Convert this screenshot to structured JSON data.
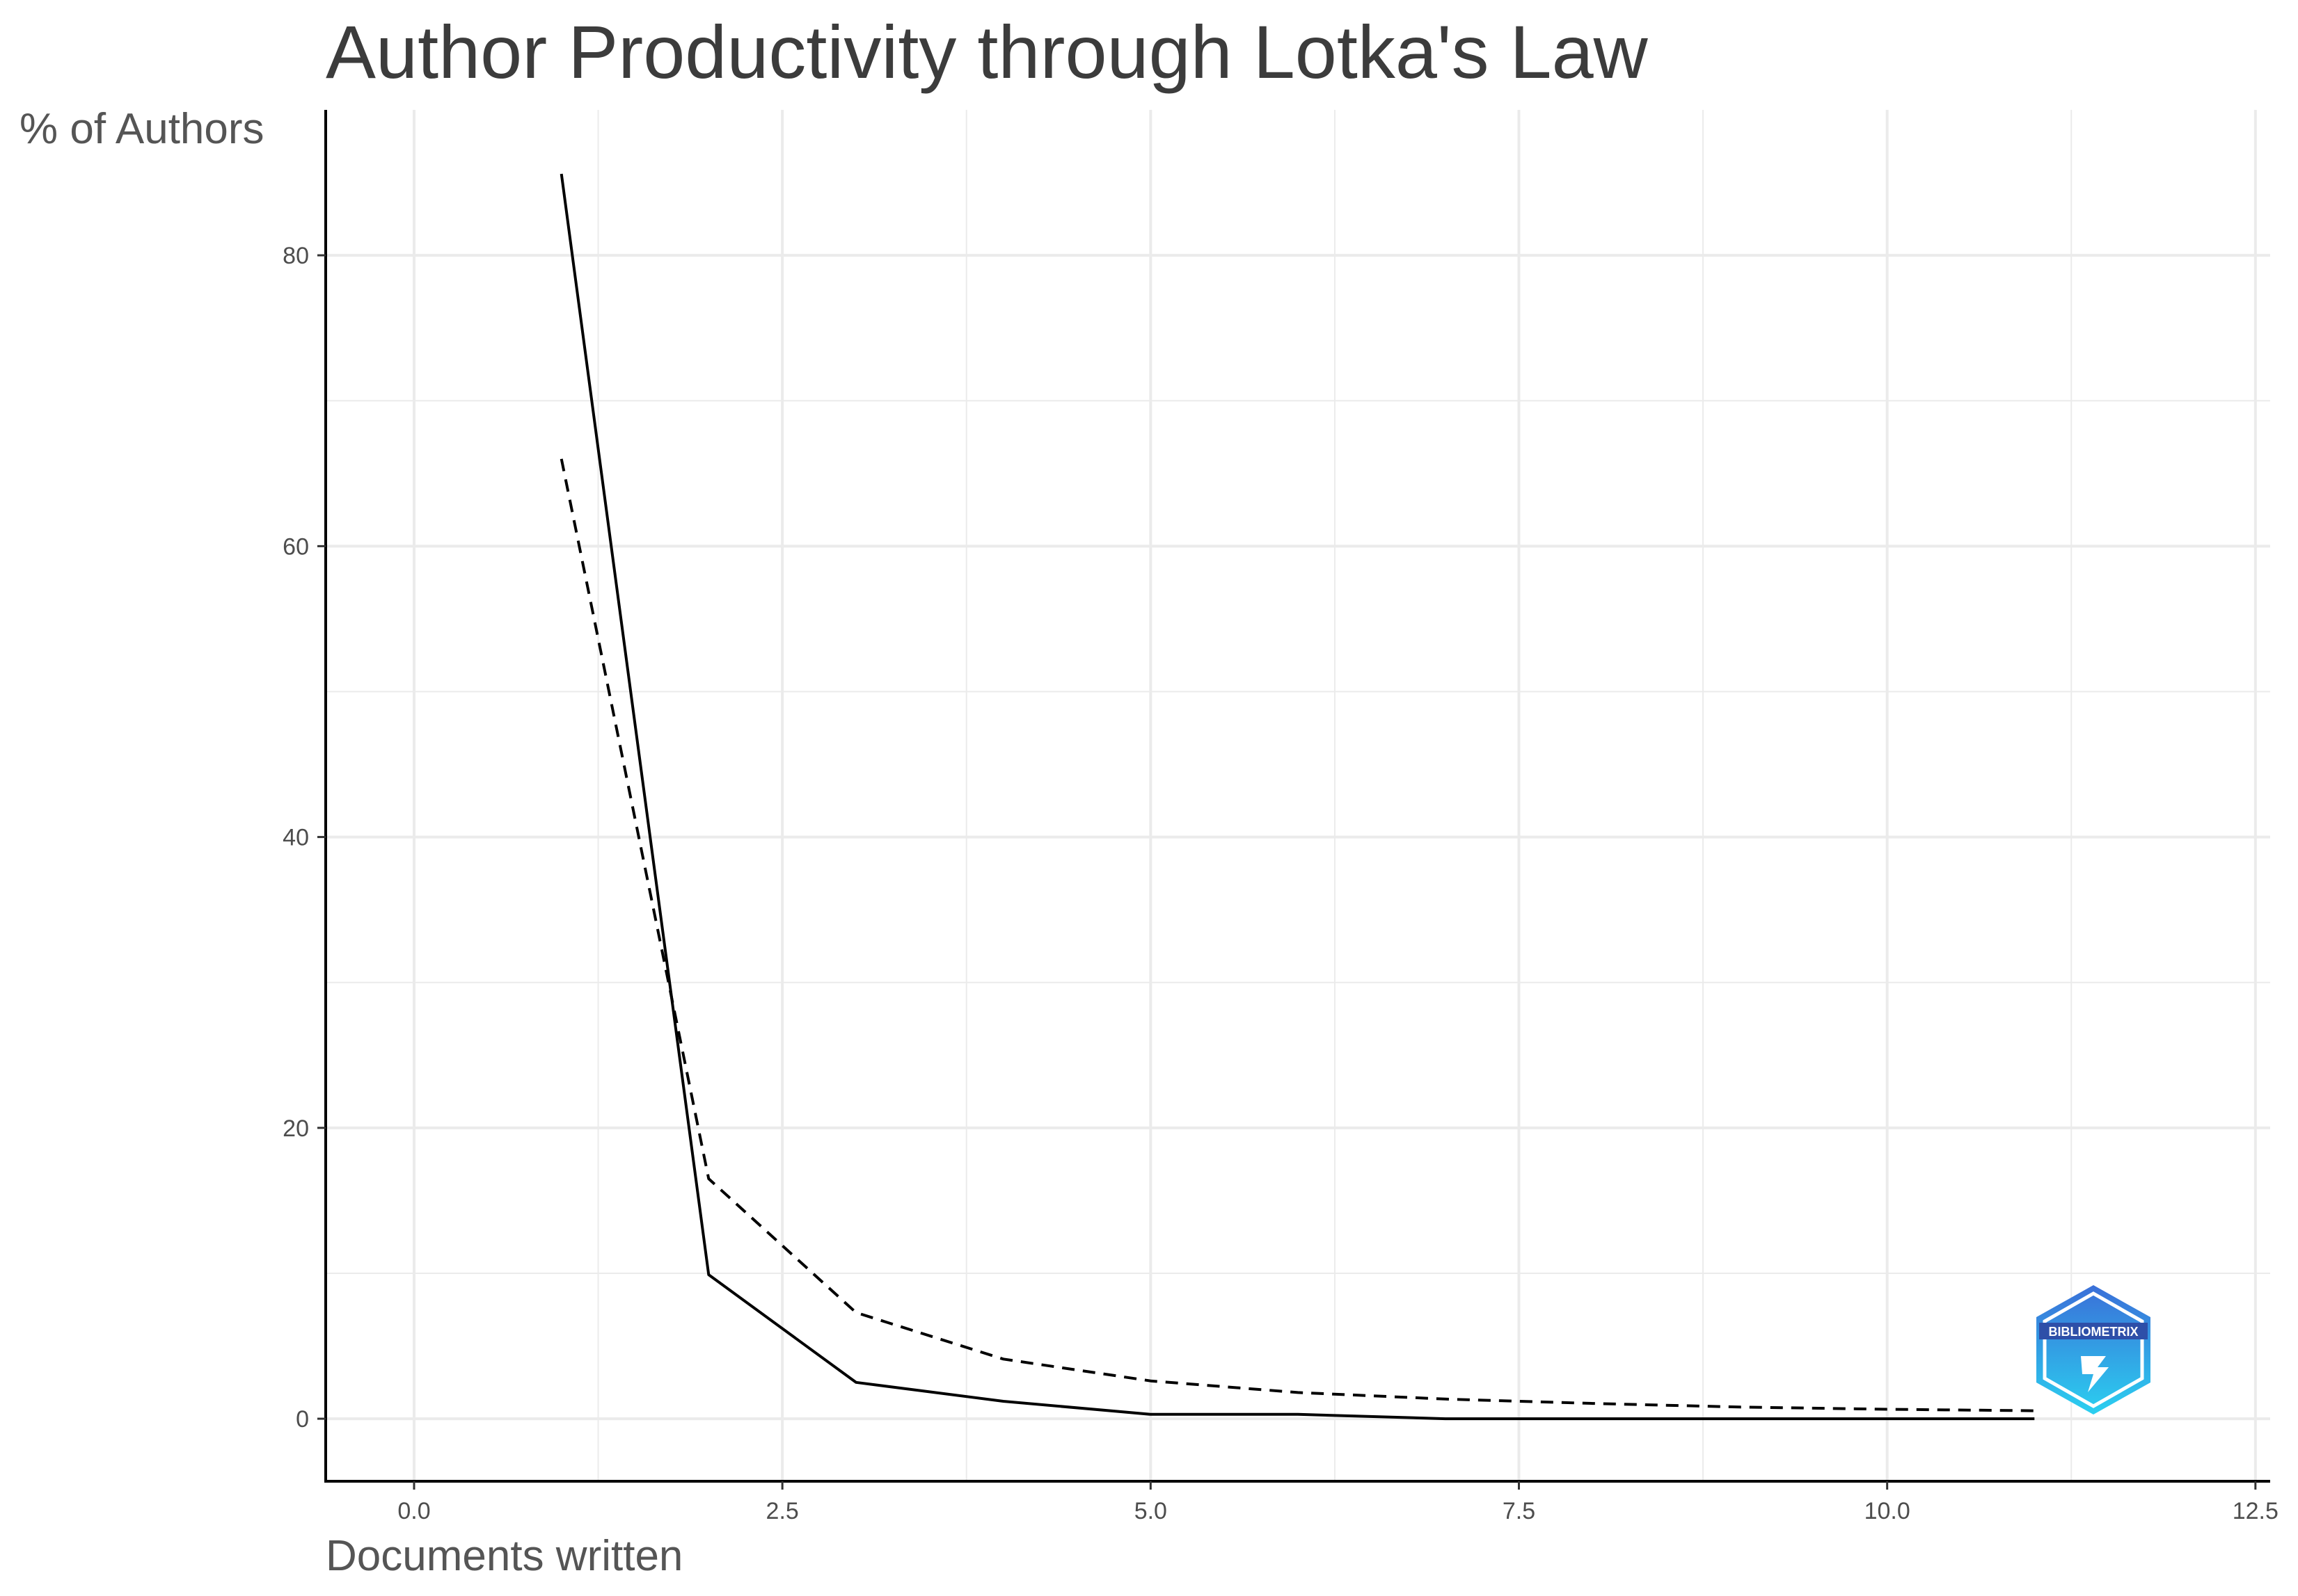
{
  "chart_data": {
    "type": "line",
    "title": "Author Productivity through Lotka's Law",
    "xlabel": "Documents written",
    "ylabel": "% of Authors",
    "xlim": [
      -0.6,
      12.6
    ],
    "ylim": [
      -4.3,
      90
    ],
    "x_ticks": [
      0.0,
      2.5,
      5.0,
      7.5,
      10.0,
      12.5
    ],
    "x_tick_labels": [
      "0.0",
      "2.5",
      "5.0",
      "7.5",
      "10.0",
      "12.5"
    ],
    "y_ticks": [
      0,
      20,
      40,
      60,
      80
    ],
    "y_tick_labels": [
      "0",
      "20",
      "40",
      "60",
      "80"
    ],
    "grid": true,
    "legend": "none",
    "series": [
      {
        "style": "solid",
        "color": "#000000",
        "x": [
          1,
          2,
          3,
          4,
          5,
          6,
          7,
          8,
          9,
          10,
          11
        ],
        "y": [
          85.6,
          9.9,
          2.5,
          1.2,
          0.3,
          0.3,
          0.0,
          0.0,
          0.0,
          0.0,
          0.0
        ]
      },
      {
        "style": "dashed",
        "color": "#000000",
        "x": [
          1,
          2,
          3,
          4,
          5,
          6,
          7,
          8,
          9,
          10,
          11
        ],
        "y": [
          66.0,
          16.5,
          7.3,
          4.1,
          2.6,
          1.8,
          1.35,
          1.05,
          0.8,
          0.65,
          0.55
        ]
      }
    ]
  },
  "logo": {
    "text": "BIBLIOMETRIX",
    "color_top": "#3a6fd8",
    "color_bottom": "#2bd0f0"
  },
  "colors": {
    "grid": "#ebebeb",
    "axis": "#000000",
    "title": "#3c3c3c",
    "axis_title": "#555555"
  }
}
